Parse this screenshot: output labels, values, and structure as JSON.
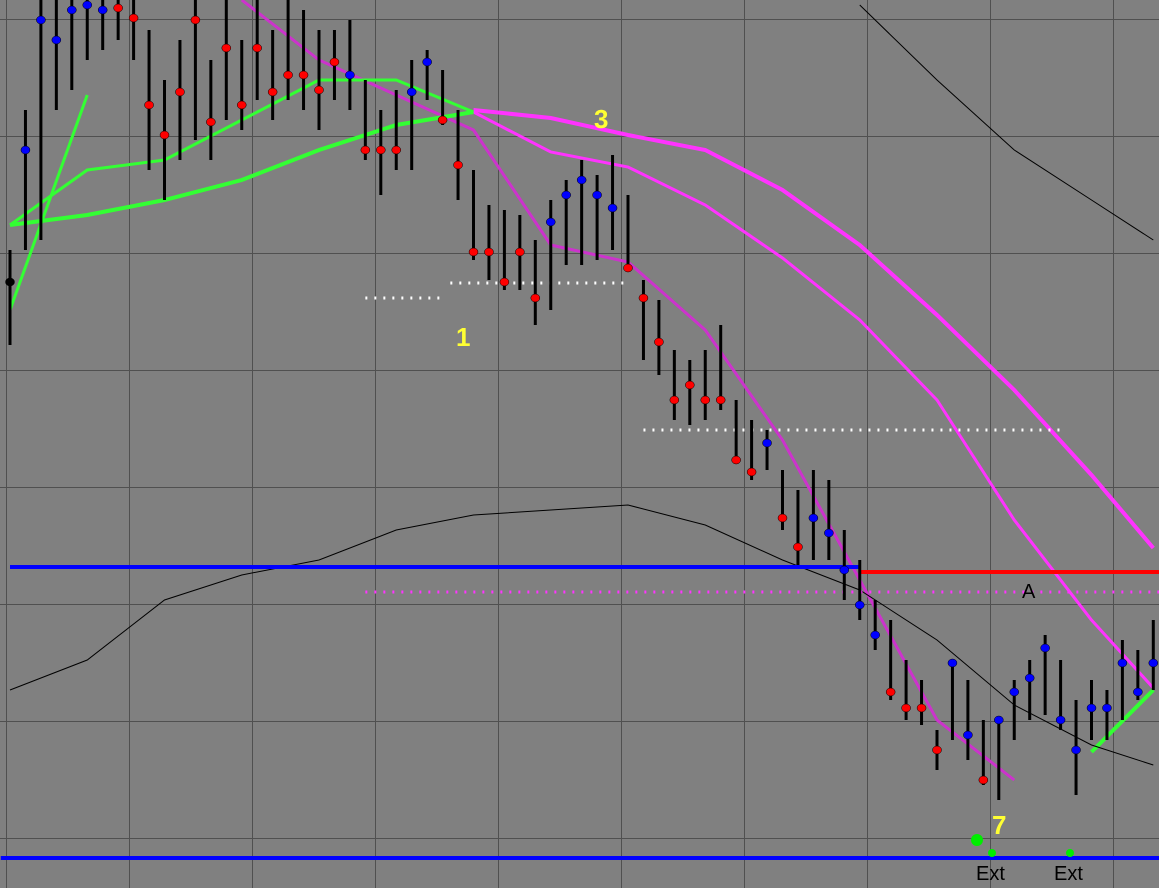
{
  "chart_data": {
    "type": "ohlc",
    "ylim": [
      0,
      888
    ],
    "high": [
      638,
      778,
      888,
      888,
      888,
      888,
      888,
      888,
      888,
      858,
      808,
      848,
      888,
      828,
      888,
      848,
      888,
      858,
      888,
      878,
      858,
      858,
      868,
      808,
      778,
      798,
      828,
      838,
      818,
      778,
      718,
      683,
      678,
      673,
      648,
      688,
      708,
      728,
      713,
      733,
      693,
      608,
      588,
      538,
      528,
      538,
      563,
      488,
      468,
      458,
      418,
      398,
      418,
      408,
      358,
      328,
      288,
      268,
      228,
      208,
      158,
      228,
      208,
      168,
      168,
      208,
      228,
      253,
      228,
      188,
      208,
      198,
      248,
      238,
      268
    ],
    "low": [
      543,
      638,
      648,
      778,
      798,
      828,
      838,
      848,
      828,
      718,
      688,
      728,
      748,
      728,
      768,
      758,
      788,
      768,
      788,
      778,
      758,
      788,
      778,
      728,
      693,
      718,
      718,
      788,
      763,
      688,
      628,
      608,
      598,
      598,
      563,
      578,
      623,
      623,
      628,
      638,
      618,
      528,
      513,
      468,
      463,
      468,
      478,
      428,
      408,
      418,
      358,
      323,
      328,
      328,
      288,
      268,
      238,
      188,
      168,
      163,
      118,
      148,
      128,
      103,
      88,
      148,
      168,
      173,
      158,
      93,
      148,
      148,
      168,
      188,
      198
    ],
    "close": [
      606,
      738,
      868,
      848,
      878,
      883,
      878,
      880,
      870,
      783,
      753,
      796,
      868,
      766,
      840,
      783,
      840,
      796,
      813,
      813,
      798,
      826,
      813,
      738,
      738,
      738,
      796,
      826,
      768,
      723,
      636,
      636,
      606,
      636,
      590,
      666,
      693,
      708,
      693,
      680,
      620,
      590,
      546,
      488,
      503,
      488,
      488,
      428,
      416,
      445,
      370,
      341,
      370,
      355,
      318,
      283,
      253,
      196,
      180,
      180,
      138,
      225,
      153,
      108,
      168,
      196,
      210,
      240,
      168,
      138,
      180,
      180,
      225,
      196,
      225
    ],
    "close_colors": [
      "black",
      "blue",
      "blue",
      "blue",
      "blue",
      "blue",
      "blue",
      "red",
      "red",
      "red",
      "red",
      "red",
      "red",
      "red",
      "red",
      "red",
      "red",
      "red",
      "red",
      "red",
      "red",
      "red",
      "blue",
      "red",
      "red",
      "red",
      "blue",
      "blue",
      "red",
      "red",
      "red",
      "red",
      "red",
      "red",
      "red",
      "blue",
      "blue",
      "blue",
      "blue",
      "blue",
      "red",
      "red",
      "red",
      "red",
      "red",
      "red",
      "red",
      "red",
      "red",
      "blue",
      "red",
      "red",
      "blue",
      "blue",
      "blue",
      "blue",
      "blue",
      "red",
      "red",
      "red",
      "red",
      "blue",
      "blue",
      "red",
      "blue",
      "blue",
      "blue",
      "blue",
      "blue",
      "blue",
      "blue",
      "blue",
      "blue",
      "blue",
      "blue"
    ],
    "line_x": [
      0,
      5,
      10,
      15,
      20,
      25,
      30,
      35,
      40,
      45,
      50,
      55,
      60,
      65,
      70,
      74
    ],
    "lines": [
      {
        "color": "#ff33ff",
        "width": 4,
        "values": [
          null,
          null,
          null,
          null,
          null,
          null,
          778,
          770,
          753,
          738,
          698,
          643,
          573,
          498,
          413,
          340
        ]
      },
      {
        "color": "#ff33ff",
        "width": 3,
        "values": [
          null,
          null,
          null,
          null,
          null,
          null,
          776,
          736,
          721,
          683,
          630,
          568,
          488,
          368,
          268,
          200
        ]
      },
      {
        "color": "#cc33cc",
        "width": 3,
        "values": [
          null,
          null,
          null,
          888,
          828,
          793,
          758,
          643,
          626,
          558,
          448,
          308,
          168,
          108,
          null,
          null
        ]
      },
      {
        "color": "#33ff33",
        "width": 4,
        "values": [
          663,
          673,
          688,
          708,
          738,
          763,
          776,
          null,
          null,
          null,
          null,
          null,
          null,
          null,
          136,
          198
        ]
      },
      {
        "color": "#33ff33",
        "width": 3,
        "values": [
          663,
          718,
          728,
          768,
          808,
          808,
          776,
          null,
          null,
          null,
          null,
          null,
          null,
          null,
          null,
          null
        ]
      },
      {
        "color": "#33ff33",
        "width": 3,
        "values": [
          578,
          793,
          null,
          null,
          null,
          null,
          null,
          null,
          null,
          null,
          null,
          null,
          null,
          null,
          null,
          null
        ]
      },
      {
        "color": "#000000",
        "width": 1,
        "values": [
          198,
          228,
          288,
          313,
          328,
          358,
          373,
          378,
          383,
          363,
          328,
          298,
          248,
          183,
          143,
          123
        ]
      },
      {
        "color": "#000000",
        "width": 1,
        "values": [
          null,
          null,
          null,
          null,
          null,
          null,
          null,
          null,
          null,
          null,
          null,
          883,
          808,
          738,
          688,
          648
        ]
      }
    ],
    "levels": [
      {
        "value": 321,
        "from": 0,
        "to": 55,
        "color": "#0000ff",
        "style": "solid"
      },
      {
        "value": 316,
        "from": 55,
        "to": 74.5,
        "color": "#ff0000",
        "style": "solid"
      },
      {
        "value": 296,
        "from": 23,
        "to": 74.5,
        "color": "#ff33ff",
        "style": "dotted"
      },
      {
        "value": 30,
        "from": -0.6,
        "to": 74.5,
        "color": "#0000ff",
        "style": "solid"
      },
      {
        "value": 590,
        "from": 23,
        "to": 28,
        "color": "#ffffff",
        "style": "dotted"
      },
      {
        "value": 605,
        "from": 28.5,
        "to": 40,
        "color": "#ffffff",
        "style": "dotted"
      },
      {
        "value": 458,
        "from": 41,
        "to": 68,
        "color": "#ffffff",
        "style": "dotted"
      }
    ],
    "annotations": [
      "3",
      "1",
      "7",
      "A",
      "Ext",
      "Ext"
    ]
  }
}
